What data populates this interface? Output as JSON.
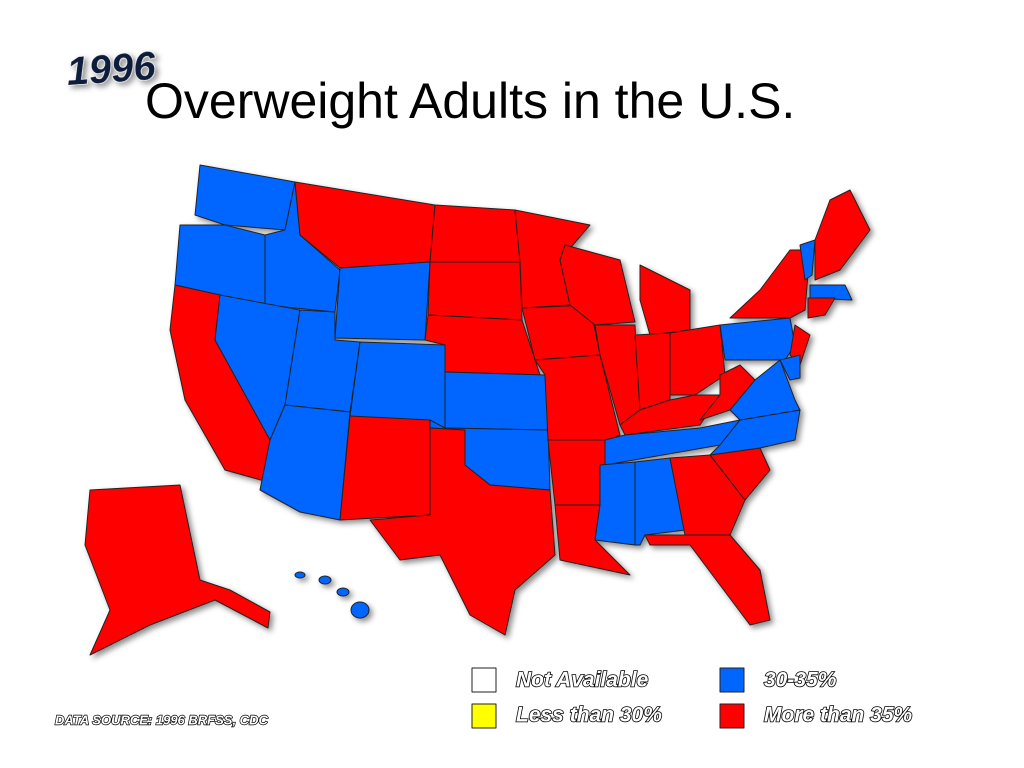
{
  "badge": "1996",
  "title": "Overweight Adults in the U.S.",
  "legend": [
    {
      "label": "Not Available",
      "color": "#ffffff"
    },
    {
      "label": "Less than 30%",
      "color": "#ffff00"
    },
    {
      "label": "30-35%",
      "color": "#0066ff"
    },
    {
      "label": "More than 35%",
      "color": "#ff0000"
    }
  ],
  "source": "DATA SOURCE: 1996 BRFSS, CDC"
}
